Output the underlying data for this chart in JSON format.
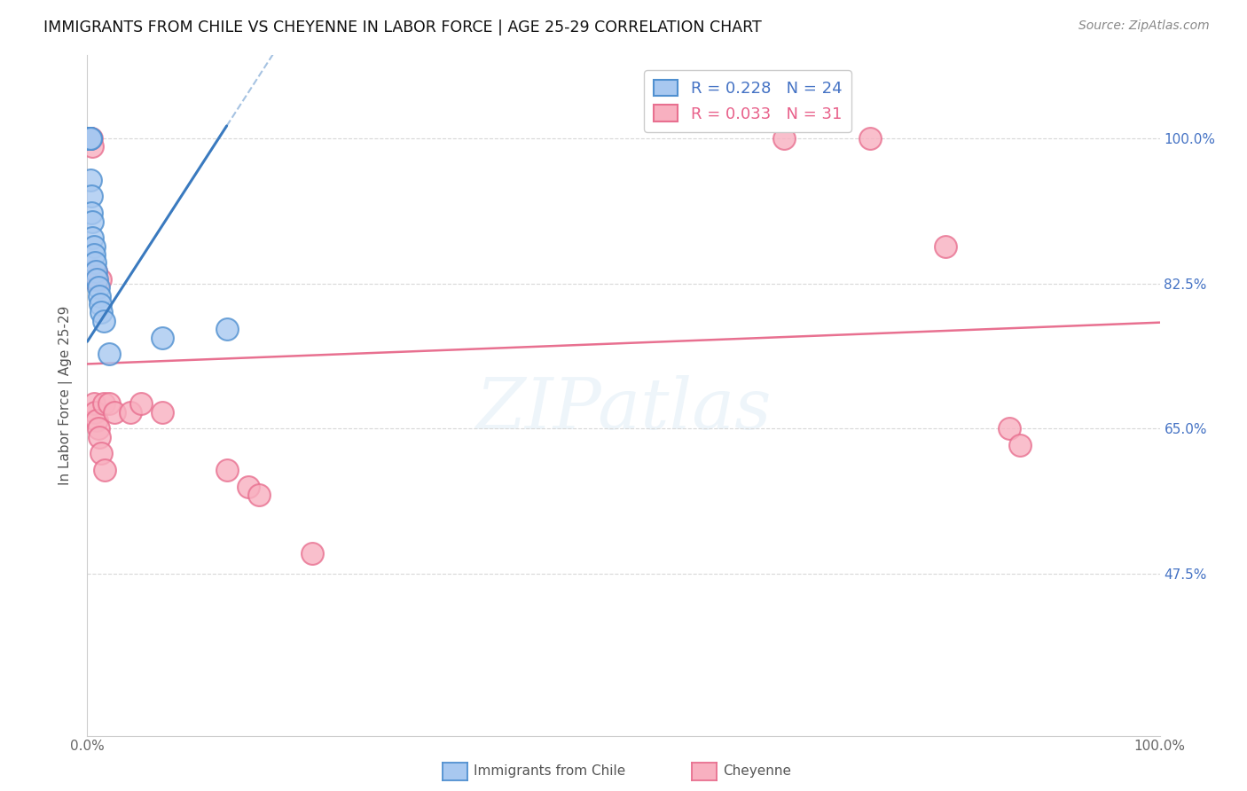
{
  "title": "IMMIGRANTS FROM CHILE VS CHEYENNE IN LABOR FORCE | AGE 25-29 CORRELATION CHART",
  "source": "Source: ZipAtlas.com",
  "ylabel": "In Labor Force | Age 25-29",
  "y_ticks": [
    0.475,
    0.65,
    0.825,
    1.0
  ],
  "y_tick_labels_right": [
    "47.5%",
    "65.0%",
    "82.5%",
    "100.0%"
  ],
  "x_ticks": [
    0.0,
    0.2,
    0.4,
    0.6,
    0.8,
    1.0
  ],
  "x_tick_labels": [
    "0.0%",
    "",
    "",
    "",
    "",
    "100.0%"
  ],
  "xlim": [
    0.0,
    1.0
  ],
  "ylim": [
    0.28,
    1.1
  ],
  "blue_R": 0.228,
  "blue_N": 24,
  "pink_R": 0.033,
  "pink_N": 31,
  "legend_label_blue": "Immigrants from Chile",
  "legend_label_pink": "Cheyenne",
  "watermark": "ZIPatlas",
  "blue_fill": "#a8c8f0",
  "blue_edge": "#5090d0",
  "pink_fill": "#f8b0c0",
  "pink_edge": "#e87090",
  "blue_line_color": "#3a7abf",
  "pink_line_color": "#e87090",
  "blue_dots_x": [
    0.001,
    0.001,
    0.002,
    0.002,
    0.003,
    0.003,
    0.003,
    0.004,
    0.004,
    0.005,
    0.005,
    0.006,
    0.006,
    0.007,
    0.008,
    0.009,
    0.01,
    0.011,
    0.012,
    0.013,
    0.015,
    0.02,
    0.07,
    0.13
  ],
  "blue_dots_y": [
    1.0,
    1.0,
    1.0,
    1.0,
    1.0,
    1.0,
    0.95,
    0.93,
    0.91,
    0.9,
    0.88,
    0.87,
    0.86,
    0.85,
    0.84,
    0.83,
    0.82,
    0.81,
    0.8,
    0.79,
    0.78,
    0.74,
    0.76,
    0.77
  ],
  "pink_dots_x": [
    0.001,
    0.002,
    0.003,
    0.004,
    0.005,
    0.005,
    0.006,
    0.006,
    0.007,
    0.008,
    0.009,
    0.01,
    0.011,
    0.012,
    0.013,
    0.015,
    0.016,
    0.02,
    0.025,
    0.04,
    0.05,
    0.07,
    0.13,
    0.15,
    0.16,
    0.65,
    0.73,
    0.8,
    0.86,
    0.87,
    0.21
  ],
  "pink_dots_y": [
    1.0,
    1.0,
    1.0,
    1.0,
    0.99,
    0.84,
    0.83,
    0.68,
    0.67,
    0.84,
    0.66,
    0.65,
    0.64,
    0.83,
    0.62,
    0.68,
    0.6,
    0.68,
    0.67,
    0.67,
    0.68,
    0.67,
    0.6,
    0.58,
    0.57,
    1.0,
    1.0,
    0.87,
    0.65,
    0.63,
    0.5
  ]
}
